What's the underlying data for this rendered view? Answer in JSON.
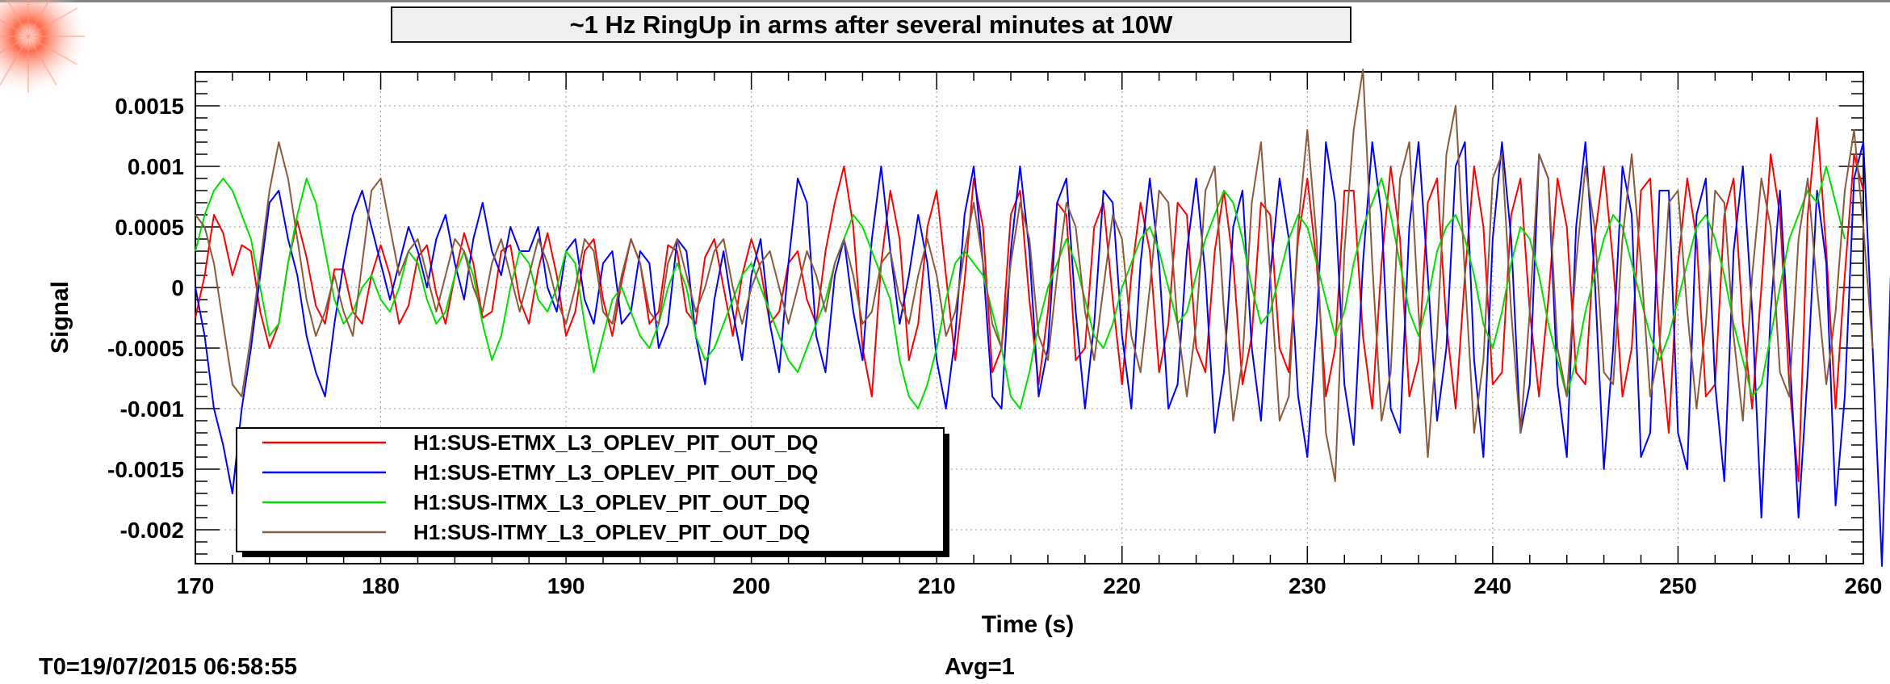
{
  "chart_data": {
    "type": "line",
    "title": "~1 Hz RingUp in arms after several minutes at 10W",
    "xlabel": "Time (s)",
    "ylabel": "Signal",
    "xlim": [
      170,
      260
    ],
    "ylim": [
      -0.00228,
      0.00178
    ],
    "x_ticks": [
      170,
      180,
      190,
      200,
      210,
      220,
      230,
      240,
      250,
      260
    ],
    "x_tick_labels": [
      "170",
      "180",
      "190",
      "200",
      "210",
      "220",
      "230",
      "240",
      "250",
      "260"
    ],
    "y_ticks": [
      -0.002,
      -0.0015,
      -0.001,
      -0.0005,
      0,
      0.0005,
      0.001,
      0.0015
    ],
    "y_tick_labels": [
      "-0.002",
      "-0.0015",
      "-0.001",
      "-0.0005",
      "0",
      "0.0005",
      "0.001",
      "0.0015"
    ],
    "grid": true,
    "legend_position": "bottom-left",
    "footer_left": "T0=19/07/2015 06:58:55",
    "footer_right": "Avg=1",
    "sample_step_s": 0.5,
    "series": [
      {
        "name": "H1:SUS-ETMX_L3_OPLEV_PIT_OUT_DQ",
        "color": "#ff0000",
        "values": [
          -0.00025,
          0.0001,
          0.0006,
          0.00045,
          0.0001,
          0.00035,
          0.0003,
          -0.0002,
          -0.0005,
          -0.0003,
          0.0002,
          0.00055,
          0.00025,
          -0.00015,
          -0.0003,
          0.00015,
          0.00015,
          -0.0002,
          -0.0003,
          0.0001,
          0.00035,
          0.0001,
          -0.0003,
          -0.00015,
          0.00025,
          0.00035,
          -5e-05,
          -0.0003,
          0.0001,
          0.00045,
          0.0002,
          -0.00025,
          -0.0002,
          0.0003,
          0.00035,
          -0.0001,
          -0.0003,
          0.00015,
          0.00045,
          0.0001,
          -0.0004,
          -0.0002,
          0.0003,
          0.0004,
          -0.0001,
          -0.0004,
          5e-05,
          0.0004,
          0.0002,
          -0.0003,
          -0.0002,
          0.00035,
          0.0003,
          -0.0002,
          -0.0003,
          0.00025,
          0.0004,
          0,
          -0.0004,
          0.0001,
          0.0004,
          0.00015,
          -0.0003,
          -0.0002,
          0.0002,
          0.0003,
          -0.0001,
          -0.0003,
          0.0003,
          0.0007,
          0.001,
          0.0005,
          -0.0005,
          -0.0009,
          0.0002,
          0.0008,
          0.0004,
          -0.0006,
          -0.0003,
          0.0005,
          0.0008,
          0.0001,
          -0.0006,
          5e-05,
          0.0009,
          0.0005,
          -0.0007,
          -0.0005,
          0.0006,
          0.0008,
          -0.0001,
          -0.0008,
          -0.0002,
          0.0007,
          0.0006,
          -0.0006,
          -0.0005,
          0.0005,
          0.0007,
          -0.0001,
          -0.0008,
          0.0001,
          0.0007,
          0.0003,
          -0.0007,
          -0.0003,
          0.0007,
          0.0006,
          -0.0005,
          -0.0007,
          0.0003,
          0.0008,
          0.0002,
          -0.0008,
          -0.0004,
          0.0007,
          0.0006,
          -0.0005,
          -0.0007,
          0.0004,
          0.0009,
          0.0002,
          -0.0009,
          -0.0005,
          0.0008,
          0.0008,
          -0.0004,
          -0.001,
          0.0002,
          0.001,
          0.0004,
          -0.0009,
          -0.0006,
          0.0007,
          0.0009,
          -0.0003,
          -0.001,
          0.0001,
          0.001,
          0.0005,
          -0.0008,
          -0.0007,
          0.0006,
          0.0009,
          -0.0002,
          -0.0009,
          -0.0001,
          0.0009,
          0.0005,
          -0.0007,
          -0.0008,
          0.0004,
          0.001,
          0.0002,
          -0.0009,
          -0.0005,
          0.0008,
          0.0009,
          -0.0004,
          -0.0012,
          0.0002,
          0.0009,
          0.0004,
          -0.0009,
          -0.0008,
          0.0006,
          0.0009,
          -0.0003,
          -0.001,
          0,
          0.0011,
          0.0006,
          -0.0008,
          -0.0016,
          0.0006,
          0.0014,
          0.0003,
          -0.001,
          0.0001,
          0.0011,
          0.0008
        ]
      },
      {
        "name": "H1:SUS-ETMY_L3_OPLEV_PIT_OUT_DQ",
        "color": "#0000ff",
        "values": [
          0,
          -0.0004,
          -0.001,
          -0.0013,
          -0.0017,
          -0.001,
          -0.0005,
          0.0001,
          0.0007,
          0.0008,
          0.0004,
          0.0001,
          -0.0004,
          -0.0007,
          -0.0009,
          -0.0003,
          0.0002,
          0.0006,
          0.0008,
          0.0005,
          0.0002,
          -0.0001,
          0.0002,
          0.0005,
          0.0003,
          0,
          0.0004,
          0.0006,
          0.0002,
          -0.0001,
          0.0004,
          0.0007,
          0.0003,
          0.0001,
          0.0005,
          0.0003,
          0.0003,
          0.0005,
          0,
          -0.0002,
          0.0003,
          0.0004,
          -0.0001,
          -0.0003,
          0.0002,
          0.0003,
          -0.0003,
          -0.0002,
          0.0003,
          0.0002,
          -0.0005,
          -0.0003,
          0.0004,
          0.0003,
          -0.0004,
          -0.0008,
          -0.0001,
          0.0003,
          -0.0002,
          -0.0006,
          0.0001,
          0.0004,
          -0.0003,
          -0.0007,
          0.0002,
          0.0009,
          0.0007,
          -0.0004,
          -0.0007,
          0.0001,
          0.0004,
          -0.0002,
          -0.0006,
          0.0004,
          0.001,
          0.0003,
          -0.0003,
          0.0001,
          0.0006,
          0.0002,
          -0.0006,
          -0.001,
          -0.0004,
          0.0006,
          0.001,
          0.0002,
          -0.0009,
          -0.001,
          0.0003,
          0.001,
          0.0003,
          -0.0009,
          -0.0005,
          0.0007,
          0.0009,
          -0.0002,
          -0.001,
          -0.0003,
          0.0008,
          0.0007,
          -0.0004,
          -0.001,
          0.0002,
          0.0009,
          0.0002,
          -0.001,
          -0.0008,
          0.0003,
          0.0009,
          0.0001,
          -0.0012,
          -0.0007,
          0.0005,
          0.0008,
          -0.0005,
          -0.0011,
          0.0001,
          0.0009,
          0.0004,
          -0.0009,
          -0.0014,
          -0.0003,
          0.0012,
          0.0007,
          -0.0008,
          -0.0013,
          0.0002,
          0.0012,
          0.0006,
          -0.001,
          -0.0012,
          0.0005,
          0.0012,
          0.0001,
          -0.0011,
          -0.0005,
          0.001,
          0.0012,
          -0.0006,
          -0.0014,
          0.0004,
          0.0012,
          0.0004,
          -0.0012,
          -0.0008,
          0.0011,
          0.0009,
          -0.0008,
          -0.0014,
          0.0005,
          0.0012,
          0.0001,
          -0.0015,
          -0.0005,
          0.001,
          0.0006,
          -0.0014,
          -0.0012,
          0.0008,
          0.0008,
          -0.0012,
          -0.0015,
          0.0006,
          0.0009,
          -0.0008,
          -0.0016,
          0.0003,
          0.001,
          -0.0002,
          -0.0019,
          -0.0002,
          0.0008,
          -0.0005,
          -0.0019,
          -0.0007,
          0.0008,
          0.0002,
          -0.0018,
          -0.0009,
          0.0009,
          0.0012,
          -0.0005,
          -0.0023,
          0.0002
        ]
      },
      {
        "name": "H1:SUS-ITMX_L3_OPLEV_PIT_OUT_DQ",
        "color": "#00e000",
        "values": [
          0.0003,
          0.0006,
          0.0008,
          0.0009,
          0.0008,
          0.0006,
          0.0004,
          0,
          -0.0004,
          -0.0003,
          0.0002,
          0.0006,
          0.0009,
          0.0007,
          0.0003,
          -0.0001,
          -0.0003,
          -0.0002,
          0,
          0.0001,
          -0.0001,
          -0.0002,
          0,
          0.0003,
          0.0002,
          -0.0001,
          -0.0003,
          -0.0002,
          0.0001,
          0.0003,
          0.0001,
          -0.0003,
          -0.0006,
          -0.0004,
          0,
          0.0003,
          0.0002,
          -0.0001,
          -0.0002,
          0,
          0.0003,
          0.0002,
          -0.0003,
          -0.0007,
          -0.0004,
          -0.0001,
          0,
          -0.0002,
          -0.0004,
          -0.0005,
          -0.0003,
          0,
          0.0002,
          0,
          -0.0004,
          -0.0006,
          -0.0005,
          -0.0003,
          -0.0001,
          0.0001,
          0.0002,
          0,
          -0.0002,
          -0.0004,
          -0.0006,
          -0.0007,
          -0.0005,
          -0.0003,
          -0.0001,
          0.0002,
          0.0004,
          0.0006,
          0.0005,
          0.0003,
          0.0001,
          -0.0001,
          -0.0006,
          -0.0009,
          -0.001,
          -0.0008,
          -0.0005,
          -0.0001,
          0.0002,
          0.0003,
          0.0002,
          0.0001,
          -0.0002,
          -0.0005,
          -0.0009,
          -0.001,
          -0.0007,
          -0.0003,
          0,
          0.0002,
          0.0004,
          0.0002,
          -0.0001,
          -0.0004,
          -0.0005,
          -0.0003,
          0,
          0.0002,
          0.0004,
          0.0005,
          0.0003,
          0,
          -0.0003,
          -0.0002,
          0.0001,
          0.0004,
          0.0006,
          0.0008,
          0.0007,
          0.0004,
          0,
          -0.0003,
          -0.0002,
          0.0001,
          0.0004,
          0.0006,
          0.0005,
          0.0002,
          -0.0001,
          -0.0004,
          -0.0002,
          0.0002,
          0.0005,
          0.0007,
          0.0009,
          0.0006,
          0.0002,
          -0.0002,
          -0.0004,
          -0.0001,
          0.0003,
          0.0005,
          0.0006,
          0.0004,
          0.0001,
          -0.0003,
          -0.0005,
          -0.0002,
          0.0002,
          0.0005,
          0.0004,
          0.0001,
          -0.0003,
          -0.0006,
          -0.0009,
          -0.0006,
          -0.0002,
          0.0001,
          0.0004,
          0.0006,
          0.0005,
          0.0002,
          -0.0001,
          -0.0004,
          -0.0006,
          -0.0004,
          -0.0001,
          0.0002,
          0.0005,
          0.0006,
          0.0004,
          0.0001,
          -0.0003,
          -0.0006,
          -0.0009,
          -0.0008,
          -0.0004,
          0,
          0.0004,
          0.0006,
          0.0008,
          0.0007,
          0.001,
          0.0007,
          0.0004
        ]
      },
      {
        "name": "H1:SUS-ITMY_L3_OPLEV_PIT_OUT_DQ",
        "color": "#8b5a3c",
        "values": [
          0.0006,
          0.0005,
          0.0002,
          -0.0003,
          -0.0008,
          -0.0009,
          -0.0004,
          0.0002,
          0.0008,
          0.0012,
          0.0009,
          0.0004,
          -0.0001,
          -0.0004,
          -0.0002,
          0.0001,
          -0.0002,
          -0.0004,
          0.0002,
          0.0008,
          0.0009,
          0.0005,
          0.0001,
          0.0003,
          0.0004,
          0.0001,
          -0.0002,
          0.0001,
          0.0004,
          0.0003,
          0,
          -0.0002,
          0.0002,
          0.0004,
          0.0001,
          -0.0002,
          0.0001,
          0.0004,
          0.0002,
          -0.0001,
          -0.0003,
          0,
          0.0004,
          0.0003,
          -0.0002,
          -0.0003,
          0.0001,
          0.0004,
          0.0002,
          -0.0002,
          -0.0003,
          0.0002,
          0.0004,
          0.0001,
          -0.0002,
          0,
          0.0003,
          0.0004,
          0,
          -0.0003,
          0,
          0.0002,
          0.0003,
          0,
          -0.0003,
          0,
          0.0003,
          0.0001,
          -0.0002,
          0.0002,
          0.0004,
          0.0001,
          -0.0003,
          -0.0002,
          0.0002,
          0.0003,
          -0.0001,
          -0.0003,
          0.0001,
          0.0004,
          0.0001,
          -0.0004,
          -0.0002,
          0.0003,
          0.0007,
          0.0002,
          -0.0003,
          -0.0005,
          0.0002,
          0.0007,
          0.0004,
          -0.0004,
          -0.0006,
          0.0001,
          0.0007,
          0.0005,
          -0.0002,
          -0.0006,
          0,
          0.0006,
          0.0004,
          -0.0004,
          -0.0007,
          0,
          0.0008,
          0.0007,
          -0.0003,
          -0.0009,
          -0.0003,
          0.0008,
          0.001,
          -0.0002,
          -0.0011,
          -0.0006,
          0.0007,
          0.0012,
          0.0001,
          -0.0011,
          -0.0009,
          0.0005,
          0.0013,
          0.0004,
          -0.0012,
          -0.0016,
          0.0003,
          0.0013,
          0.0018,
          0.0002,
          -0.0011,
          -0.0007,
          0.0009,
          0.0012,
          -0.0002,
          -0.0014,
          -0.0004,
          0.0011,
          0.0015,
          0.0001,
          -0.0012,
          -0.0006,
          0.0009,
          0.0011,
          -0.0002,
          -0.0012,
          -0.0002,
          0.0011,
          0.0009,
          -0.0005,
          -0.0009,
          0.0002,
          0.001,
          0.0005,
          -0.0007,
          -0.0008,
          0.0004,
          0.0011,
          0.0002,
          -0.0009,
          -0.0005,
          0.0007,
          0.0008,
          -0.0002,
          -0.001,
          -0.0003,
          0.0008,
          0.0007,
          -0.0004,
          -0.0011,
          0.0001,
          0.0009,
          0.0005,
          -0.0007,
          -0.0009,
          0.0004,
          0.0009,
          0,
          -0.0008,
          -0.0002,
          0.0008,
          0.0013,
          0.0005,
          -0.0005
        ]
      }
    ]
  }
}
